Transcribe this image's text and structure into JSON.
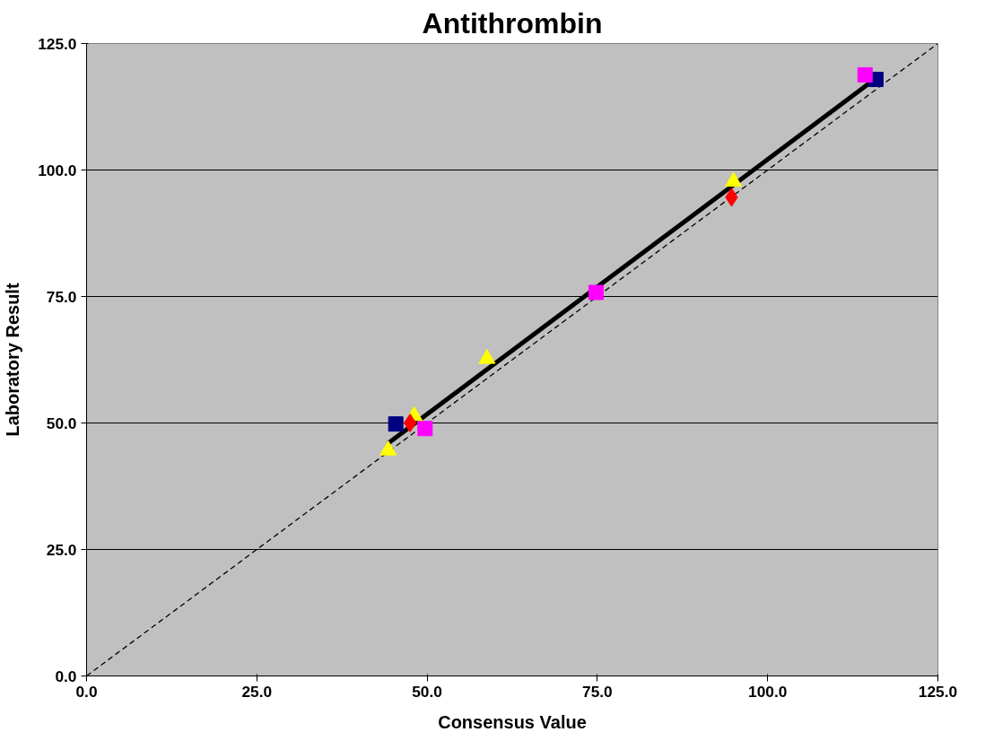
{
  "chart_data": {
    "type": "scatter",
    "title": "Antithrombin",
    "xlabel": "Consensus Value",
    "ylabel": "Laboratory Result",
    "xlim": [
      0,
      125
    ],
    "ylim": [
      0,
      125
    ],
    "xticks": [
      {
        "value": 0,
        "label": "0.0"
      },
      {
        "value": 25,
        "label": "25.0"
      },
      {
        "value": 50,
        "label": "50.0"
      },
      {
        "value": 75,
        "label": "75.0"
      },
      {
        "value": 100,
        "label": "100.0"
      },
      {
        "value": 125,
        "label": "125.0"
      }
    ],
    "yticks": [
      {
        "value": 0,
        "label": "0.0"
      },
      {
        "value": 25,
        "label": "25.0"
      },
      {
        "value": 50,
        "label": "50.0"
      },
      {
        "value": 75,
        "label": "75.0"
      },
      {
        "value": 100,
        "label": "100.0"
      },
      {
        "value": 125,
        "label": "125.0"
      }
    ],
    "grid": "y",
    "series": [
      {
        "type": "line",
        "color": "#000000",
        "line_style": "dashed",
        "x": [
          0,
          125
        ],
        "values": [
          0,
          125
        ]
      },
      {
        "type": "line",
        "color": "#000000",
        "line_style": "solid",
        "x": [
          44.3,
          115.2
        ],
        "values": [
          46.0,
          117.4
        ]
      },
      {
        "color": "#000080",
        "marker": "square",
        "x": [
          45.4,
          115.9
        ],
        "values": [
          49.8,
          117.9
        ]
      },
      {
        "color": "#ff00ff",
        "marker": "square",
        "x": [
          49.7,
          74.8,
          114.3
        ],
        "values": [
          48.9,
          75.8,
          118.8
        ]
      },
      {
        "color": "#ffff00",
        "marker": "triangle",
        "x": [
          44.3,
          58.8,
          48.1,
          95.0
        ],
        "values": [
          44.6,
          62.7,
          51.4,
          97.7
        ]
      },
      {
        "color": "#ff0000",
        "marker": "diamond",
        "x": [
          47.5,
          94.7
        ],
        "values": [
          50.0,
          94.6
        ]
      }
    ]
  }
}
